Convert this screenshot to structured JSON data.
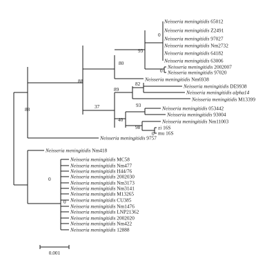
{
  "tree": {
    "genus_species": "Neisseria meningitidis",
    "leaves": [
      {
        "id": "l1",
        "species": "Neisseria meningitidis",
        "strain": "65012"
      },
      {
        "id": "l2",
        "species": "Neisseria meningitidis",
        "strain": "Z2491"
      },
      {
        "id": "l3",
        "species": "Neisseria meningitidis",
        "strain": "97027"
      },
      {
        "id": "l4",
        "species": "Neisseria meningitidis",
        "strain": "Nm2732"
      },
      {
        "id": "l5",
        "species": "Neisseria meningitidis",
        "strain": "64182"
      },
      {
        "id": "l6",
        "species": "Neisseria meningitidis",
        "strain": "63006"
      },
      {
        "id": "l7",
        "species": "Neisseria meningitidis",
        "strain": "2002007"
      },
      {
        "id": "l8",
        "species": "Neisseria meningitidis",
        "strain": "97020"
      },
      {
        "id": "l9",
        "species": "Neisseria meningitidis",
        "strain": "Nm6938"
      },
      {
        "id": "l10",
        "species": "Neisseria meningitidis",
        "strain": "DE9938"
      },
      {
        "id": "l11",
        "species": "Neisseria meningitidis",
        "strain": "alpha14"
      },
      {
        "id": "l12",
        "species": "Neisseria meningitidis",
        "strain": "M13399"
      },
      {
        "id": "l13",
        "species": "Neisseria meningitidis",
        "strain": "053442"
      },
      {
        "id": "l14",
        "species": "Neisseria meningitidis",
        "strain": "93004"
      },
      {
        "id": "l15",
        "species": "Neisseria meningitidis",
        "strain": "Nm11003"
      },
      {
        "id": "l16",
        "species": "",
        "strain": "zi 16S"
      },
      {
        "id": "l17",
        "species": "",
        "strain": "mu 16S"
      },
      {
        "id": "l18",
        "species": "Neisseria meningitidis",
        "strain": "9757"
      },
      {
        "id": "l19",
        "species": "Neisseria meningitidis",
        "strain": "Nm418"
      },
      {
        "id": "l20",
        "species": "Neisseria meningitidis",
        "strain": "MC58"
      },
      {
        "id": "l21",
        "species": "Neisseria meningitidis",
        "strain": "Nm477"
      },
      {
        "id": "l22",
        "species": "Neisseria meningitidis",
        "strain": "H44/76"
      },
      {
        "id": "l23",
        "species": "Neisseria meningitidis",
        "strain": "2002030"
      },
      {
        "id": "l24",
        "species": "Neisseria meningitidis",
        "strain": "Nm3173"
      },
      {
        "id": "l25",
        "species": "Neisseria meningitidis",
        "strain": "Nm3141"
      },
      {
        "id": "l26",
        "species": "Neisseria meningitidis",
        "strain": "M13265"
      },
      {
        "id": "l27",
        "species": "Neisseria meningitidis",
        "strain": "CU385"
      },
      {
        "id": "l28",
        "species": "Neisseria meningitidis",
        "strain": "Nm1476"
      },
      {
        "id": "l29",
        "species": "Neisseria meningitidis",
        "strain": "LNP21362"
      },
      {
        "id": "l30",
        "species": "Neisseria meningitidis",
        "strain": "2002020"
      },
      {
        "id": "l31",
        "species": "Neisseria meningitidis",
        "strain": "Nm422"
      },
      {
        "id": "l32",
        "species": "Neisseria meningitidis",
        "strain": "12888"
      }
    ],
    "bootstrap_values": [
      "0",
      "93",
      "80",
      "0",
      "88",
      "82",
      "89",
      "37",
      "93",
      "40",
      "98",
      "0",
      "88",
      "0",
      "0"
    ],
    "scale_bar": {
      "label": "0.001",
      "value": 0.001
    }
  }
}
